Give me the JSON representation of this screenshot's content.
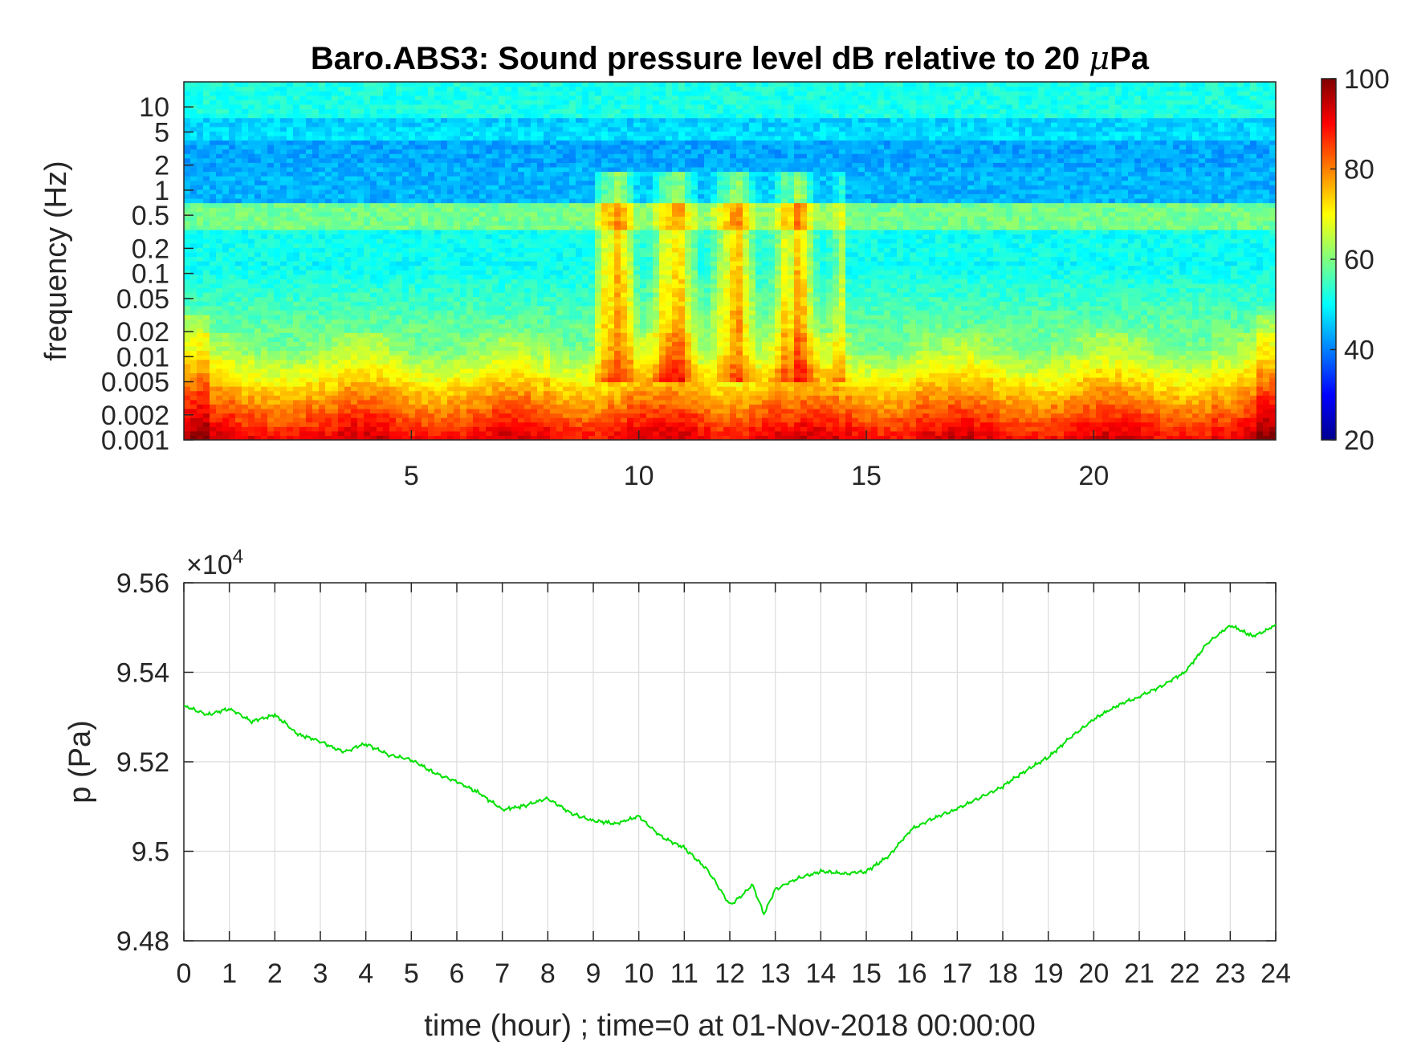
{
  "chart_data": [
    {
      "type": "heatmap",
      "title": "Baro.ABS3: Sound pressure level dB relative to 20 μPa",
      "title_prefix": "Baro.ABS3: Sound pressure level dB relative to 20 ",
      "title_mu": "μ",
      "title_suffix": "Pa",
      "ylabel": "frequency (Hz)",
      "yscale": "log",
      "ylim": [
        0.001,
        20
      ],
      "y_ticks": [
        0.001,
        0.002,
        0.005,
        0.01,
        0.02,
        0.05,
        0.1,
        0.2,
        0.5,
        1,
        2,
        5,
        10
      ],
      "y_tick_labels": [
        "0.001",
        "0.002",
        "0.005",
        "0.01",
        "0.02",
        "0.05",
        "0.1",
        "0.2",
        "0.5",
        "1",
        "2",
        "5",
        "10"
      ],
      "xlim": [
        0,
        24
      ],
      "x_ticks": [
        5,
        10,
        15,
        20
      ],
      "x_tick_labels": [
        "5",
        "10",
        "15",
        "20"
      ],
      "colormap": "jet",
      "colorbar": {
        "range": [
          20,
          100
        ],
        "ticks": [
          20,
          40,
          60,
          80,
          100
        ],
        "tick_labels": [
          "20",
          "40",
          "60",
          "80",
          "100"
        ]
      },
      "description_of_values": {
        "high_freq_band_dB": 50,
        "mid_freq_band_dB": 40,
        "low_freq_band_dB": 90,
        "active_period_hours": [
          9,
          14.5
        ]
      }
    },
    {
      "type": "line",
      "ylabel": "p (Pa)",
      "xlabel": "time (hour) ; time=0 at 01-Nov-2018 00:00:00",
      "xlim": [
        0,
        24
      ],
      "ylim": [
        94800,
        95600
      ],
      "y_exponent_label": "×10",
      "y_exponent_power": "4",
      "x_ticks": [
        0,
        1,
        2,
        3,
        4,
        5,
        6,
        7,
        8,
        9,
        10,
        11,
        12,
        13,
        14,
        15,
        16,
        17,
        18,
        19,
        20,
        21,
        22,
        23,
        24
      ],
      "x_tick_labels": [
        "0",
        "1",
        "2",
        "3",
        "4",
        "5",
        "6",
        "7",
        "8",
        "9",
        "10",
        "11",
        "12",
        "13",
        "14",
        "15",
        "16",
        "17",
        "18",
        "19",
        "20",
        "21",
        "22",
        "23",
        "24"
      ],
      "y_ticks": [
        94800,
        95000,
        95200,
        95400,
        95600
      ],
      "y_tick_labels": [
        "9.48",
        "9.5",
        "9.52",
        "9.54",
        "9.56"
      ],
      "grid": true,
      "line_color": "#00e000",
      "series": [
        {
          "x": [
            0,
            0.5,
            1,
            1.5,
            2,
            2.5,
            3,
            3.5,
            4,
            4.5,
            5,
            5.5,
            6,
            6.5,
            7,
            7.5,
            8,
            8.5,
            9,
            9.5,
            10,
            10.5,
            11,
            11.5,
            12,
            12.25,
            12.5,
            12.75,
            13,
            13.5,
            14,
            14.5,
            15,
            15.5,
            16,
            16.5,
            17,
            17.5,
            18,
            18.5,
            19,
            19.5,
            20,
            20.5,
            21,
            21.5,
            22,
            22.5,
            23,
            23.5,
            24
          ],
          "y": [
            95325,
            95305,
            95318,
            95290,
            95305,
            95262,
            95245,
            95222,
            95240,
            95215,
            95205,
            95175,
            95155,
            95130,
            95093,
            95102,
            95118,
            95085,
            95068,
            95062,
            95078,
            95032,
            95008,
            94960,
            94880,
            94900,
            94925,
            94860,
            94915,
            94940,
            94955,
            94950,
            94955,
            94990,
            95050,
            95075,
            95095,
            95120,
            95145,
            95180,
            95210,
            95255,
            95295,
            95325,
            95345,
            95370,
            95400,
            95465,
            95505,
            95480,
            95505
          ]
        }
      ]
    }
  ],
  "colors": {
    "line": "#00e000",
    "axis": "#262626",
    "grid": "#dcdcdc"
  }
}
